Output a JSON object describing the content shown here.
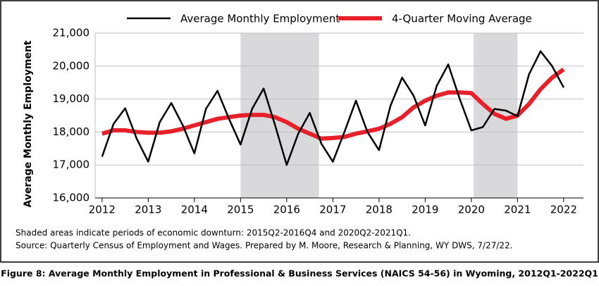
{
  "chart_data": {
    "type": "line",
    "title": "Figure 8: Average Monthly Employment in Professional & Business Services (NAICS 54-56) in Wyoming, 2012Q1-2022Q1",
    "y_label": "Average Monthly Employment",
    "notes": [
      "Shaded areas indicate periods of economic downturn: 2015Q2-2016Q4 and 2020Q2-2021Q1.",
      "Source: Quarterly Census of Employment and Wages. Prepared by M. Moore, Research & Planning, WY DWS, 7/27/22."
    ],
    "x": [
      2012,
      2012.25,
      2012.5,
      2012.75,
      2013,
      2013.25,
      2013.5,
      2013.75,
      2014,
      2014.25,
      2014.5,
      2014.75,
      2015,
      2015.25,
      2015.5,
      2015.75,
      2016,
      2016.25,
      2016.5,
      2016.75,
      2017,
      2017.25,
      2017.5,
      2017.75,
      2018,
      2018.25,
      2018.5,
      2018.75,
      2019,
      2019.25,
      2019.5,
      2019.75,
      2020,
      2020.25,
      2020.5,
      2020.75,
      2021,
      2021.25,
      2021.5,
      2021.75,
      2022
    ],
    "series": [
      {
        "name": "Average Monthly Employment",
        "color": "#000000",
        "width": 2.5,
        "values": [
          17250,
          18250,
          18720,
          17800,
          17100,
          18300,
          18880,
          18200,
          17350,
          18700,
          19250,
          18400,
          17620,
          18700,
          19320,
          18200,
          17000,
          17950,
          18580,
          17650,
          17100,
          18000,
          18950,
          18000,
          17450,
          18800,
          19650,
          19100,
          18200,
          19400,
          20050,
          19000,
          18050,
          18150,
          18700,
          18650,
          18480,
          19750,
          20450,
          20000,
          19350
        ]
      },
      {
        "name": "4-Quarter Moving Average",
        "color": "#e8202a",
        "width": 6,
        "values": [
          17950,
          18050,
          18050,
          18000,
          17980,
          17980,
          18020,
          18100,
          18200,
          18300,
          18400,
          18450,
          18500,
          18520,
          18520,
          18450,
          18300,
          18100,
          17950,
          17800,
          17820,
          17850,
          17950,
          18020,
          18100,
          18250,
          18450,
          18750,
          18950,
          19100,
          19200,
          19200,
          19180,
          18850,
          18550,
          18400,
          18500,
          18850,
          19300,
          19650,
          19900
        ]
      }
    ],
    "shaded": [
      [
        2015.0,
        2016.7
      ],
      [
        2020.05,
        2021.0
      ]
    ],
    "shade_color": "#d9d9db",
    "xlim": [
      2011.85,
      2022.43
    ],
    "xticks": [
      2012,
      2013,
      2014,
      2015,
      2016,
      2017,
      2018,
      2019,
      2020,
      2021,
      2022
    ],
    "ylim": [
      16000,
      21000
    ],
    "yticks": [
      {
        "value": 16000,
        "label": "16,000"
      },
      {
        "value": 17000,
        "label": "17,000"
      },
      {
        "value": 18000,
        "label": "18,000"
      },
      {
        "value": 19000,
        "label": "19,000"
      },
      {
        "value": 20000,
        "label": "20,000"
      },
      {
        "value": 21000,
        "label": "21,000"
      }
    ],
    "grid": true
  }
}
